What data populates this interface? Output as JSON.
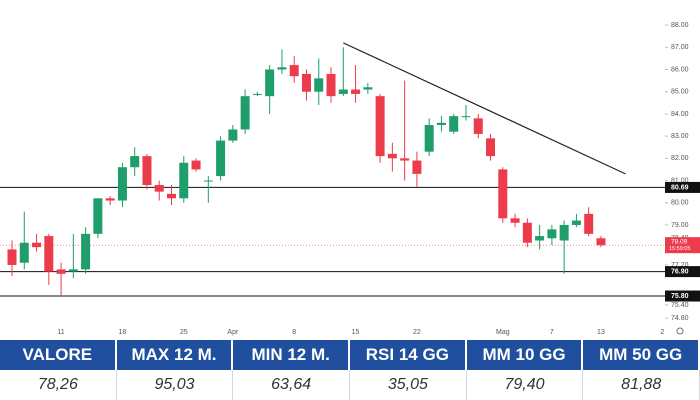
{
  "chart_data": {
    "type": "candlestick",
    "categories": [
      null,
      null,
      null,
      null,
      "11",
      null,
      null,
      null,
      null,
      "18",
      null,
      null,
      null,
      null,
      "25",
      null,
      null,
      null,
      "Apr",
      null,
      null,
      null,
      null,
      "8",
      null,
      null,
      null,
      null,
      "15",
      null,
      null,
      null,
      null,
      "22",
      null,
      null,
      null,
      null,
      null,
      null,
      "Mag",
      null,
      null,
      null,
      "7",
      null,
      null,
      null,
      "13",
      null,
      null,
      null,
      null,
      "2"
    ],
    "open": [
      77.9,
      77.3,
      78.2,
      78.5,
      77.0,
      76.9,
      77.0,
      78.6,
      80.2,
      80.1,
      81.6,
      82.1,
      80.8,
      80.4,
      80.2,
      81.9,
      81.0,
      81.2,
      82.8,
      83.3,
      84.9,
      84.8,
      86.0,
      86.2,
      85.8,
      85.0,
      85.8,
      84.9,
      85.1,
      85.1,
      84.8,
      82.2,
      82.0,
      81.9,
      82.3,
      83.5,
      83.2,
      83.9,
      83.8,
      82.9,
      81.5,
      79.3,
      79.1,
      78.3,
      78.4,
      78.3,
      79.0,
      79.5,
      78.4,
      null,
      null,
      null,
      null,
      null
    ],
    "high": [
      78.3,
      79.6,
      78.6,
      78.6,
      77.3,
      78.6,
      78.9,
      80.2,
      80.3,
      81.8,
      82.5,
      82.2,
      81.0,
      80.8,
      82.1,
      82.0,
      81.2,
      83.0,
      83.5,
      85.1,
      85.0,
      86.2,
      86.9,
      86.6,
      86.0,
      86.5,
      86.1,
      87.0,
      86.2,
      85.4,
      84.9,
      82.7,
      85.5,
      82.3,
      83.8,
      83.9,
      84.0,
      84.4,
      84.0,
      83.1,
      81.6,
      79.5,
      79.3,
      79.0,
      79.0,
      79.2,
      79.5,
      79.8,
      78.5,
      null,
      null,
      null,
      null,
      null
    ],
    "low": [
      76.7,
      77.0,
      77.8,
      76.3,
      75.8,
      76.6,
      76.8,
      78.4,
      79.9,
      79.8,
      81.2,
      80.6,
      80.1,
      79.9,
      80.0,
      81.4,
      80.0,
      81.0,
      82.7,
      83.1,
      84.8,
      84.0,
      85.8,
      85.4,
      84.6,
      84.4,
      84.5,
      84.8,
      84.5,
      84.9,
      81.8,
      81.4,
      81.0,
      80.7,
      82.1,
      83.2,
      83.1,
      83.7,
      82.9,
      81.9,
      79.1,
      78.9,
      78.0,
      77.9,
      78.1,
      76.8,
      78.9,
      78.5,
      78.0,
      null,
      null,
      null,
      null,
      null
    ],
    "close": [
      77.2,
      78.2,
      78.0,
      76.9,
      76.8,
      77.0,
      78.6,
      80.2,
      80.1,
      81.6,
      82.1,
      80.8,
      80.5,
      80.2,
      81.8,
      81.5,
      81.0,
      82.8,
      83.3,
      84.8,
      84.9,
      86.0,
      86.1,
      85.7,
      85.0,
      85.6,
      84.8,
      85.1,
      84.9,
      85.2,
      82.1,
      82.0,
      81.9,
      81.3,
      83.5,
      83.6,
      83.9,
      83.9,
      83.1,
      82.1,
      79.3,
      79.1,
      78.2,
      78.5,
      78.8,
      79.0,
      79.2,
      78.6,
      78.09,
      null,
      null,
      null,
      null,
      null
    ],
    "up_color": "#1f9d6b",
    "down_color": "#ec3b4b",
    "ylim": [
      74.0,
      89.13
    ],
    "yticks": [
      {
        "value": 88,
        "label": "88.00"
      },
      {
        "value": 87,
        "label": "87.00"
      },
      {
        "value": 86,
        "label": "86.00"
      },
      {
        "value": 85,
        "label": "85.00"
      },
      {
        "value": 84,
        "label": "84.00"
      },
      {
        "value": 83,
        "label": "83.00"
      },
      {
        "value": 82,
        "label": "82.00"
      },
      {
        "value": 81,
        "label": "81.00"
      },
      {
        "value": 80,
        "label": "80.00"
      },
      {
        "value": 79,
        "label": "79.00"
      },
      {
        "value": 78.4,
        "label": "78.40"
      },
      {
        "value": 77.2,
        "label": "77.20"
      },
      {
        "value": 75.4,
        "label": "75.40"
      },
      {
        "value": 74.8,
        "label": "74.80"
      }
    ],
    "grid": false,
    "hlines": [
      {
        "value": 80.69,
        "label": "80.69"
      },
      {
        "value": 76.9,
        "label": "76.90"
      },
      {
        "value": 75.8,
        "label": "75.80"
      }
    ],
    "hline_color": "#111111",
    "last_price": {
      "value": 78.09,
      "label": "78.09",
      "sublabel": "15:59:05"
    },
    "trendline": {
      "x": [
        27,
        50
      ],
      "values": [
        87.2,
        81.3
      ]
    }
  },
  "table": {
    "columns": [
      "VALORE",
      "MAX 12 M.",
      "MIN 12 M.",
      "RSI 14 GG",
      "MM 10 GG",
      "MM 50 GG"
    ],
    "rows": [
      [
        "78,26",
        "95,03",
        "63,64",
        "35,05",
        "79,40",
        "81,88"
      ]
    ]
  }
}
